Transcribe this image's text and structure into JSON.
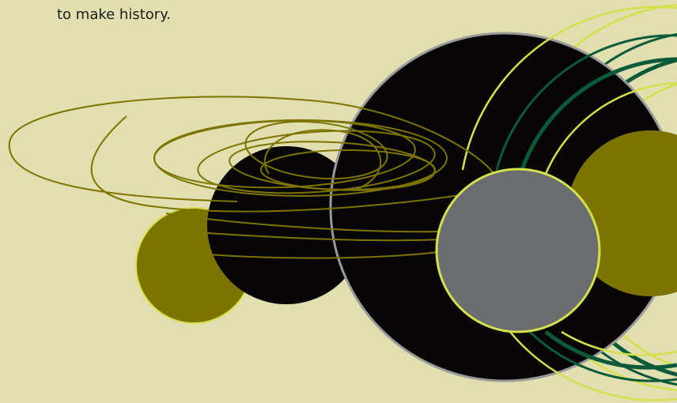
{
  "text": "to make history."
}
